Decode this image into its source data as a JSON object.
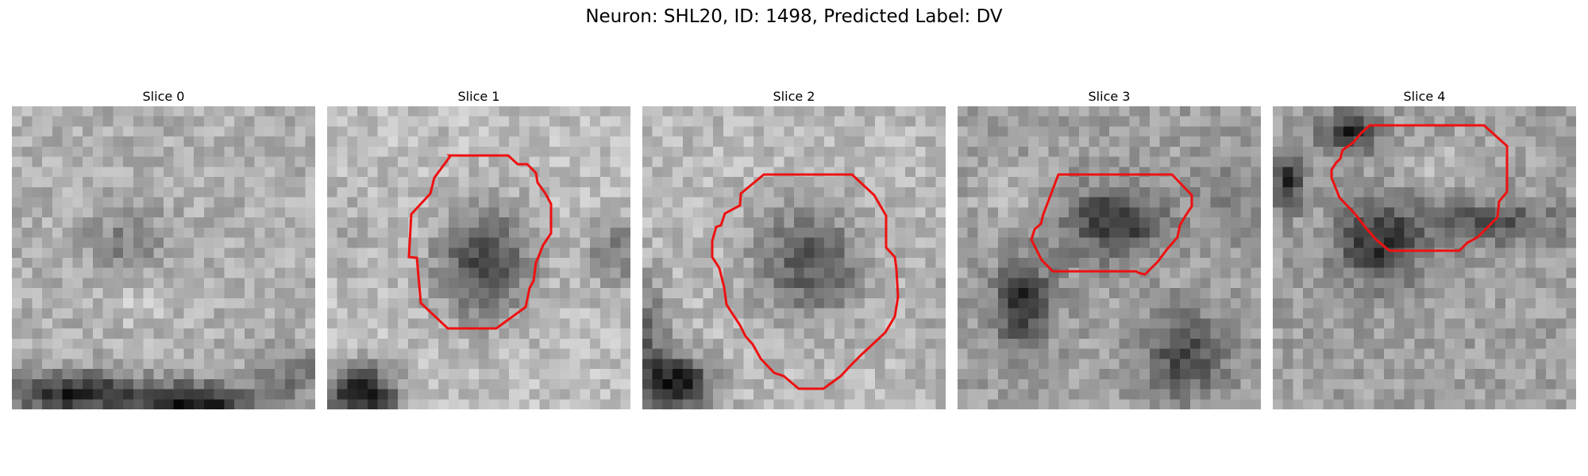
{
  "figure": {
    "suptitle": "Neuron: SHL20, ID: 1498, Predicted Label: DV",
    "contour_color": "#ee1111",
    "panels": [
      {
        "title": "Slice 0"
      },
      {
        "title": "Slice 1"
      },
      {
        "title": "Slice 2"
      },
      {
        "title": "Slice 3"
      },
      {
        "title": "Slice 4"
      }
    ]
  }
}
